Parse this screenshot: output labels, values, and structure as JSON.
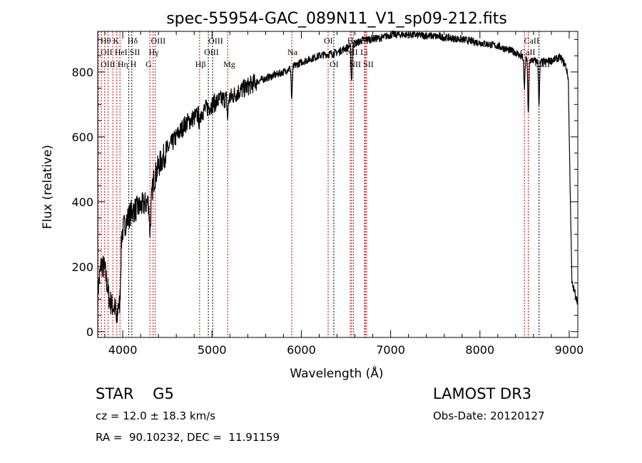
{
  "chart_data": {
    "type": "line",
    "title": "spec-55954-GAC_089N11_V1_sp09-212.fits",
    "xlabel": "Wavelength (Å)",
    "ylabel": "Flux (relative)",
    "xlim": [
      3720,
      9096
    ],
    "ylim": [
      -18,
      925
    ],
    "xticks": [
      4000,
      5000,
      6000,
      7000,
      8000,
      9000
    ],
    "yticks": [
      0,
      200,
      400,
      600,
      800
    ],
    "grid": false,
    "series": [
      {
        "name": "flux",
        "x": [
          3720,
          3760,
          3800,
          3850,
          3880,
          3920,
          3960,
          3990,
          4020,
          4100,
          4200,
          4290,
          4310,
          4340,
          4400,
          4500,
          4600,
          4700,
          4800,
          4900,
          5000,
          5100,
          5200,
          5300,
          5500,
          5700,
          5800,
          6000,
          6200,
          6400,
          6550,
          6700,
          6900,
          7000,
          7200,
          7500,
          7800,
          8000,
          8200,
          8400,
          8500,
          8600,
          8700,
          8800,
          8900,
          8960,
          8990,
          9000,
          9030,
          9096
        ],
        "y": [
          120,
          210,
          190,
          100,
          80,
          70,
          90,
          300,
          330,
          370,
          385,
          400,
          360,
          460,
          510,
          560,
          600,
          640,
          660,
          680,
          700,
          715,
          720,
          740,
          770,
          790,
          800,
          830,
          850,
          860,
          880,
          900,
          905,
          915,
          915,
          910,
          900,
          890,
          880,
          860,
          840,
          835,
          830,
          835,
          845,
          820,
          780,
          600,
          150,
          90
        ]
      }
    ],
    "lines": [
      {
        "label": "Hθ",
        "wl": 3798,
        "row": 1,
        "color": "#cc0000"
      },
      {
        "label": "K",
        "wl": 3934,
        "row": 1,
        "color": "#cc0000"
      },
      {
        "label": "Hδ",
        "wl": 4102,
        "row": 1,
        "color": "#000000"
      },
      {
        "label": "OIII",
        "wl": 4363,
        "row": 1,
        "color": "#cc0000"
      },
      {
        "label": "OIII",
        "wl": 5007,
        "row": 1,
        "color": "#000000"
      },
      {
        "label": "OI",
        "wl": 6300,
        "row": 1,
        "color": "#cc0000"
      },
      {
        "label": "Hα",
        "wl": 6563,
        "row": 1,
        "color": "#cc0000"
      },
      {
        "label": "SII",
        "wl": 6716,
        "row": 1,
        "color": "#cc0000"
      },
      {
        "label": "CaII",
        "wl": 8542,
        "row": 1,
        "color": "#cc0000"
      },
      {
        "label": "OII",
        "wl": 3727,
        "row": 2,
        "color": "#cc0000"
      },
      {
        "label": "HeI",
        "wl": 3889,
        "row": 2,
        "color": "#cc0000"
      },
      {
        "label": "SII",
        "wl": 4068,
        "row": 2,
        "color": "#000000"
      },
      {
        "label": "Hγ",
        "wl": 4340,
        "row": 2,
        "color": "#cc0000"
      },
      {
        "label": "OIII",
        "wl": 4959,
        "row": 2,
        "color": "#000000"
      },
      {
        "label": "Na",
        "wl": 5893,
        "row": 2,
        "color": "#cc0000"
      },
      {
        "label": "NII",
        "wl": 6548,
        "row": 2,
        "color": "#cc0000"
      },
      {
        "label": "Li",
        "wl": 6708,
        "row": 2,
        "color": "#cc0000"
      },
      {
        "label": "CaII",
        "wl": 8498,
        "row": 2,
        "color": "#cc0000"
      },
      {
        "label": "OIII",
        "wl": 3760,
        "row": 3,
        "color": "#cc0000"
      },
      {
        "label": "Hη",
        "wl": 3835,
        "row": 3,
        "color": "#cc0000"
      },
      {
        "label": "H",
        "wl": 3969,
        "row": 3,
        "color": "#cc0000"
      },
      {
        "label": "G",
        "wl": 4304,
        "row": 3,
        "color": "#cc0000"
      },
      {
        "label": "Hβ",
        "wl": 4861,
        "row": 3,
        "color": "#cc0000"
      },
      {
        "label": "Mg",
        "wl": 5175,
        "row": 3,
        "color": "#cc0000"
      },
      {
        "label": "OI",
        "wl": 6364,
        "row": 3,
        "color": "#000000"
      },
      {
        "label": "NII",
        "wl": 6583,
        "row": 3,
        "color": "#cc0000"
      },
      {
        "label": "SII",
        "wl": 6731,
        "row": 3,
        "color": "#cc0000"
      },
      {
        "label": "CaII",
        "wl": 8662,
        "row": 3,
        "color": "#000000"
      }
    ]
  },
  "info": {
    "class": "STAR    G5",
    "cz": "cz = 12.0 ± 18.3 km/s",
    "radec": "RA =  90.10232, DEC =  11.91159",
    "survey": "LAMOST DR3",
    "obsdate": "Obs-Date: 20120127"
  }
}
